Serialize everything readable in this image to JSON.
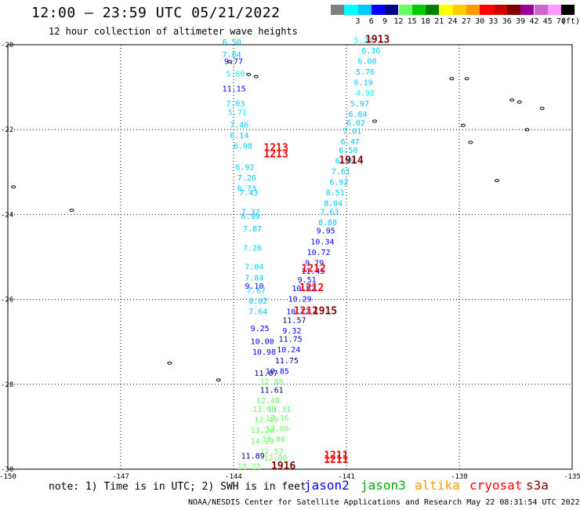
{
  "title": "12:00 — 23:59 UTC 05/21/2022",
  "subtitle": "12 hour collection of altimeter wave heights",
  "color_scale": {
    "unit": "(ft)",
    "steps": [
      {
        "label": "",
        "color": "#808080"
      },
      {
        "label": "3",
        "color": "#00ffff"
      },
      {
        "label": "6",
        "color": "#00c8ff"
      },
      {
        "label": "9",
        "color": "#0000ff"
      },
      {
        "label": "12",
        "color": "#00008b"
      },
      {
        "label": "15",
        "color": "#66ff66"
      },
      {
        "label": "18",
        "color": "#00cc00"
      },
      {
        "label": "21",
        "color": "#008000"
      },
      {
        "label": "24",
        "color": "#ffff00"
      },
      {
        "label": "27",
        "color": "#ffcc00"
      },
      {
        "label": "30",
        "color": "#ff9900"
      },
      {
        "label": "33",
        "color": "#ff0000"
      },
      {
        "label": "36",
        "color": "#cc0000"
      },
      {
        "label": "39",
        "color": "#800000"
      },
      {
        "label": "42",
        "color": "#990099"
      },
      {
        "label": "45",
        "color": "#cc66cc"
      },
      {
        "label": "70",
        "color": "#ff99ff"
      },
      {
        "label": "",
        "color": "#000000"
      }
    ]
  },
  "axes": {
    "lon_labels": [
      "-150",
      "-147",
      "-144",
      "-141",
      "-138",
      "-135"
    ],
    "lat_labels": [
      "-20",
      "-22",
      "-24",
      "-26",
      "-28",
      "-30"
    ],
    "lon_range": [
      -150,
      -135
    ],
    "lat_range": [
      -30,
      -20
    ]
  },
  "track_labels": [
    {
      "text": "1913",
      "lon": -140.5,
      "lat": -19.95,
      "color": "#800000"
    },
    {
      "text": "1914",
      "lon": -141.2,
      "lat": -22.8,
      "color": "#800000"
    },
    {
      "text": "1213",
      "lon": -143.2,
      "lat": -22.5,
      "color": "#ff0000"
    },
    {
      "text": "1213",
      "lon": -143.2,
      "lat": -22.65,
      "color": "#ff0000"
    },
    {
      "text": "1212",
      "lon": -142.2,
      "lat": -25.35,
      "color": "#ff0000"
    },
    {
      "text": "1212",
      "lon": -142.25,
      "lat": -25.8,
      "color": "#ff0000"
    },
    {
      "text": "1212",
      "lon": -142.4,
      "lat": -26.35,
      "color": "#ff0000"
    },
    {
      "text": "1915",
      "lon": -141.9,
      "lat": -26.35,
      "color": "#800000"
    },
    {
      "text": "1211",
      "lon": -141.6,
      "lat": -29.75,
      "color": "#ff0000"
    },
    {
      "text": "1211",
      "lon": -141.6,
      "lat": -29.85,
      "color": "#ff0000"
    },
    {
      "text": "1916",
      "lon": -143.0,
      "lat": -30.0,
      "color": "#800000"
    }
  ],
  "wave_heights": [
    {
      "v": "5.20",
      "lon": -140.8,
      "lat": -19.95,
      "c": "#00ffff"
    },
    {
      "v": "6.36",
      "lon": -140.6,
      "lat": -20.2,
      "c": "#00c8ff"
    },
    {
      "v": "6.00",
      "lon": -140.7,
      "lat": -20.45,
      "c": "#00c8ff"
    },
    {
      "v": "5.76",
      "lon": -140.75,
      "lat": -20.7,
      "c": "#00c8ff"
    },
    {
      "v": "6.19",
      "lon": -140.8,
      "lat": -20.95,
      "c": "#00c8ff"
    },
    {
      "v": "4.98",
      "lon": -140.75,
      "lat": -21.2,
      "c": "#00ffff"
    },
    {
      "v": "5.97",
      "lon": -140.9,
      "lat": -21.45,
      "c": "#00c8ff"
    },
    {
      "v": "6.64",
      "lon": -140.95,
      "lat": -21.7,
      "c": "#00c8ff"
    },
    {
      "v": "6.02",
      "lon": -141.0,
      "lat": -21.9,
      "c": "#00c8ff"
    },
    {
      "v": "7.01",
      "lon": -141.1,
      "lat": -22.1,
      "c": "#00c8ff"
    },
    {
      "v": "6.47",
      "lon": -141.15,
      "lat": -22.35,
      "c": "#00c8ff"
    },
    {
      "v": "6.50",
      "lon": -141.2,
      "lat": -22.55,
      "c": "#00c8ff"
    },
    {
      "v": "6.90",
      "lon": -141.3,
      "lat": -22.8,
      "c": "#00c8ff"
    },
    {
      "v": "7.61",
      "lon": -141.4,
      "lat": -23.05,
      "c": "#00c8ff"
    },
    {
      "v": "6.92",
      "lon": -141.45,
      "lat": -23.3,
      "c": "#00c8ff"
    },
    {
      "v": "8.51",
      "lon": -141.55,
      "lat": -23.55,
      "c": "#00c8ff"
    },
    {
      "v": "8.04",
      "lon": -141.6,
      "lat": -23.8,
      "c": "#00c8ff"
    },
    {
      "v": "7.63",
      "lon": -141.7,
      "lat": -24.0,
      "c": "#00c8ff"
    },
    {
      "v": "8.88",
      "lon": -141.75,
      "lat": -24.25,
      "c": "#00c8ff"
    },
    {
      "v": "9.95",
      "lon": -141.8,
      "lat": -24.45,
      "c": "#0000ff"
    },
    {
      "v": "10.34",
      "lon": -141.95,
      "lat": -24.7,
      "c": "#0000ff"
    },
    {
      "v": "10.72",
      "lon": -142.05,
      "lat": -24.95,
      "c": "#0000ff"
    },
    {
      "v": "9.79",
      "lon": -142.1,
      "lat": -25.2,
      "c": "#0000ff"
    },
    {
      "v": "11.45",
      "lon": -142.2,
      "lat": -25.4,
      "c": "#0000ff"
    },
    {
      "v": "9.51",
      "lon": -142.3,
      "lat": -25.6,
      "c": "#0000ff"
    },
    {
      "v": "10.52",
      "lon": -142.45,
      "lat": -25.8,
      "c": "#0000ff"
    },
    {
      "v": "10.29",
      "lon": -142.55,
      "lat": -26.05,
      "c": "#0000ff"
    },
    {
      "v": "10.12",
      "lon": -142.6,
      "lat": -26.35,
      "c": "#0000ff"
    },
    {
      "v": "11.57",
      "lon": -142.7,
      "lat": -26.55,
      "c": "#00008b"
    },
    {
      "v": "9.32",
      "lon": -142.7,
      "lat": -26.8,
      "c": "#0000ff"
    },
    {
      "v": "11.75",
      "lon": -142.8,
      "lat": -27.0,
      "c": "#00008b"
    },
    {
      "v": "10.24",
      "lon": -142.85,
      "lat": -27.25,
      "c": "#0000ff"
    },
    {
      "v": "11.75",
      "lon": -142.9,
      "lat": -27.5,
      "c": "#00008b"
    },
    {
      "v": "10.85",
      "lon": -143.15,
      "lat": -27.75,
      "c": "#0000ff"
    },
    {
      "v": "12.88",
      "lon": -143.3,
      "lat": -28.0,
      "c": "#66ff66"
    },
    {
      "v": "11.61",
      "lon": -143.3,
      "lat": -28.2,
      "c": "#00008b"
    },
    {
      "v": "12.48",
      "lon": -143.4,
      "lat": -28.45,
      "c": "#66ff66"
    },
    {
      "v": "13.31",
      "lon": -143.1,
      "lat": -28.65,
      "c": "#66ff66"
    },
    {
      "v": "12.16",
      "lon": -143.15,
      "lat": -28.85,
      "c": "#66ff66"
    },
    {
      "v": "13.06",
      "lon": -143.15,
      "lat": -29.1,
      "c": "#66ff66"
    },
    {
      "v": "13.06",
      "lon": -143.25,
      "lat": -29.35,
      "c": "#66ff66"
    },
    {
      "v": "12.57",
      "lon": -143.3,
      "lat": -29.65,
      "c": "#66ff66"
    },
    {
      "v": "12.80",
      "lon": -143.2,
      "lat": -29.8,
      "c": "#66ff66"
    },
    {
      "v": "6.50",
      "lon": -144.3,
      "lat": -20.0,
      "c": "#00c8ff"
    },
    {
      "v": "7.04",
      "lon": -144.3,
      "lat": -20.3,
      "c": "#00c8ff"
    },
    {
      "v": "9.77",
      "lon": -144.25,
      "lat": -20.45,
      "c": "#0000ff"
    },
    {
      "v": "5.66",
      "lon": -144.2,
      "lat": -20.75,
      "c": "#00ffff"
    },
    {
      "v": "11.15",
      "lon": -144.3,
      "lat": -21.1,
      "c": "#0000ff"
    },
    {
      "v": "7.03",
      "lon": -144.2,
      "lat": -21.45,
      "c": "#00c8ff"
    },
    {
      "v": "5.71",
      "lon": -144.15,
      "lat": -21.65,
      "c": "#00ffff"
    },
    {
      "v": "7.46",
      "lon": -144.1,
      "lat": -21.95,
      "c": "#00c8ff"
    },
    {
      "v": "6.14",
      "lon": -144.1,
      "lat": -22.2,
      "c": "#00c8ff"
    },
    {
      "v": "6.98",
      "lon": -144.0,
      "lat": -22.45,
      "c": "#00c8ff"
    },
    {
      "v": "6.92",
      "lon": -143.95,
      "lat": -22.95,
      "c": "#00c8ff"
    },
    {
      "v": "7.26",
      "lon": -143.9,
      "lat": -23.2,
      "c": "#00c8ff"
    },
    {
      "v": "6.73",
      "lon": -143.9,
      "lat": -23.45,
      "c": "#00c8ff"
    },
    {
      "v": "7.43",
      "lon": -143.85,
      "lat": -23.55,
      "c": "#00c8ff"
    },
    {
      "v": "7.32",
      "lon": -143.8,
      "lat": -24.0,
      "c": "#00c8ff"
    },
    {
      "v": "6.99",
      "lon": -143.8,
      "lat": -24.1,
      "c": "#00c8ff"
    },
    {
      "v": "7.87",
      "lon": -143.75,
      "lat": -24.4,
      "c": "#00c8ff"
    },
    {
      "v": "7.26",
      "lon": -143.75,
      "lat": -24.85,
      "c": "#00c8ff"
    },
    {
      "v": "7.04",
      "lon": -143.7,
      "lat": -25.3,
      "c": "#00c8ff"
    },
    {
      "v": "7.84",
      "lon": -143.7,
      "lat": -25.55,
      "c": "#00c8ff"
    },
    {
      "v": "9.10",
      "lon": -143.7,
      "lat": -25.75,
      "c": "#0000ff"
    },
    {
      "v": "7.67",
      "lon": -143.65,
      "lat": -25.85,
      "c": "#00c8ff"
    },
    {
      "v": "8.02",
      "lon": -143.6,
      "lat": -26.1,
      "c": "#00c8ff"
    },
    {
      "v": "7.64",
      "lon": -143.6,
      "lat": -26.35,
      "c": "#00c8ff"
    },
    {
      "v": "9.25",
      "lon": -143.55,
      "lat": -26.75,
      "c": "#0000ff"
    },
    {
      "v": "10.00",
      "lon": -143.55,
      "lat": -27.05,
      "c": "#0000ff"
    },
    {
      "v": "10.98",
      "lon": -143.5,
      "lat": -27.3,
      "c": "#0000ff"
    },
    {
      "v": "11.07",
      "lon": -143.45,
      "lat": -27.8,
      "c": "#00008b"
    },
    {
      "v": "13.00",
      "lon": -143.5,
      "lat": -28.65,
      "c": "#66ff66"
    },
    {
      "v": "12.45",
      "lon": -143.45,
      "lat": -28.9,
      "c": "#66ff66"
    },
    {
      "v": "13.20",
      "lon": -143.55,
      "lat": -29.15,
      "c": "#66ff66"
    },
    {
      "v": "14.29",
      "lon": -143.55,
      "lat": -29.4,
      "c": "#66ff66"
    },
    {
      "v": "11.89",
      "lon": -143.8,
      "lat": -29.75,
      "c": "#00008b"
    },
    {
      "v": "12.21",
      "lon": -143.9,
      "lat": -30.0,
      "c": "#66ff66"
    }
  ],
  "islands": [
    {
      "lon": -149.85,
      "lat": -23.35
    },
    {
      "lon": -148.3,
      "lat": -23.9
    },
    {
      "lon": -144.1,
      "lat": -20.4
    },
    {
      "lon": -143.6,
      "lat": -20.7
    },
    {
      "lon": -143.4,
      "lat": -20.75
    },
    {
      "lon": -140.25,
      "lat": -21.8
    },
    {
      "lon": -138.2,
      "lat": -20.8
    },
    {
      "lon": -137.8,
      "lat": -20.8
    },
    {
      "lon": -137.9,
      "lat": -21.9
    },
    {
      "lon": -137.7,
      "lat": -22.3
    },
    {
      "lon": -136.6,
      "lat": -21.3
    },
    {
      "lon": -136.4,
      "lat": -21.35
    },
    {
      "lon": -136.2,
      "lat": -22.0
    },
    {
      "lon": -135.8,
      "lat": -21.5
    },
    {
      "lon": -137.0,
      "lat": -23.2
    },
    {
      "lon": -145.7,
      "lat": -27.5
    },
    {
      "lon": -144.4,
      "lat": -27.9
    }
  ],
  "note": "note: 1) Time is in UTC; 2) SWH is in feet",
  "satellites": [
    {
      "name": "jason2",
      "color": "#0000ff"
    },
    {
      "name": "jason3",
      "color": "#00aa00"
    },
    {
      "name": "altika",
      "color": "#ff9900"
    },
    {
      "name": "cryosat",
      "color": "#ff0000"
    },
    {
      "name": "s3a",
      "color": "#800000"
    }
  ],
  "credit": "NOAA/NESDIS Center for Satellite Applications and Research    May 22 08:31:54 UTC 2022"
}
